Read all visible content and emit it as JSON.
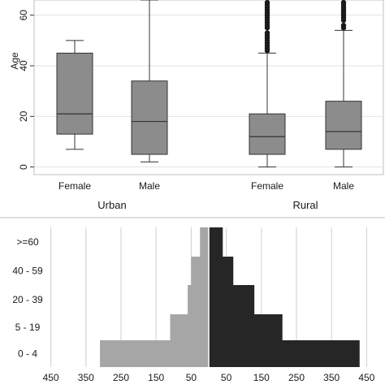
{
  "chart_data": [
    {
      "type": "box",
      "ylabel": "Age",
      "ylim": [
        -3,
        66
      ],
      "yticks": [
        0,
        20,
        40,
        60
      ],
      "grid": true,
      "groups": [
        "Urban",
        "Rural"
      ],
      "boxes": [
        {
          "group": "Urban",
          "label": "Female",
          "whisker_low": 7,
          "q1": 13,
          "median": 21,
          "q3": 45,
          "whisker_high": 50,
          "outliers": []
        },
        {
          "group": "Urban",
          "label": "Male",
          "whisker_low": 2,
          "q1": 5,
          "median": 18,
          "q3": 34,
          "whisker_high": 66,
          "outliers": []
        },
        {
          "group": "Rural",
          "label": "Female",
          "whisker_low": 0,
          "q1": 5,
          "median": 12,
          "q3": 21,
          "whisker_high": 45,
          "outliers": [
            46,
            47,
            48,
            49,
            50,
            51,
            52,
            53,
            55,
            56,
            57,
            58,
            59,
            60,
            61,
            62,
            63,
            64,
            65
          ]
        },
        {
          "group": "Rural",
          "label": "Male",
          "whisker_low": 0,
          "q1": 7,
          "median": 14,
          "q3": 26,
          "whisker_high": 54,
          "outliers": [
            55,
            56,
            58,
            59,
            60,
            61,
            62,
            63,
            64,
            65
          ]
        }
      ]
    },
    {
      "type": "bar",
      "orientation": "horizontal",
      "categories": [
        ">=60",
        "40 - 59",
        "20 - 39",
        "5 - 19",
        "0 - 4"
      ],
      "series": [
        {
          "values": [
            25,
            50,
            60,
            110,
            310
          ],
          "color": "#a6a6a6"
        },
        {
          "values": [
            40,
            70,
            130,
            210,
            430
          ],
          "color": "#262626"
        }
      ],
      "xlim": [
        -470,
        470
      ],
      "xticks": [
        -450,
        -350,
        -250,
        -150,
        -50,
        50,
        150,
        250,
        350,
        450
      ],
      "xtick_labels": [
        "450",
        "350",
        "250",
        "150",
        "50",
        "50",
        "150",
        "250",
        "350",
        "450"
      ],
      "grid": true
    }
  ]
}
